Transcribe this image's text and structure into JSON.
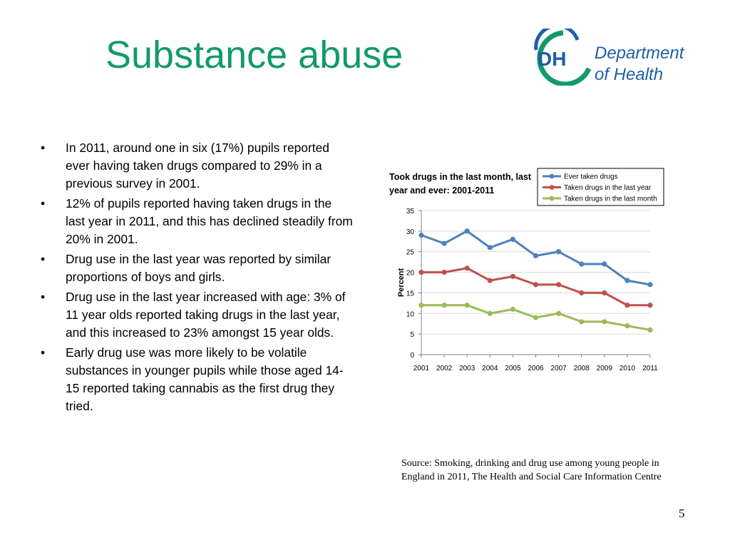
{
  "slide": {
    "title": "Substance abuse",
    "page_number": "5",
    "source": "Source: Smoking, drinking and drug use among young people in England in 2011, The Health and Social Care Information Centre",
    "bullet_glyph": "•",
    "bullets": [
      "In 2011, around one in six (17%) pupils reported ever having taken drugs compared to 29% in a previous survey in 2001.",
      "12% of pupils reported having taken drugs in the last year in 2011, and this has declined steadily from 20% in 2001.",
      "Drug use in the last year was reported by similar proportions of boys and girls.",
      "Drug use in the last year increased with age: 3% of 11 year olds reported taking drugs in the last year, and this increased to 23% amongst 15 year olds.",
      "Early drug use  was more likely to be volatile substances in younger pupils while those aged 14-15 reported taking cannabis as the first drug they tried."
    ]
  },
  "logo": {
    "mark": "DH",
    "line1": "Department",
    "line2": "of Health"
  },
  "colors": {
    "title": "#129a6a",
    "logo_blue": "#1f5ea8",
    "logo_green": "#129a6a"
  },
  "chart_data": {
    "type": "line",
    "title_lines": [
      "Took drugs in the last month, last",
      "year and ever: 2001-2011"
    ],
    "xlabel": "",
    "ylabel": "Percent",
    "ylim": [
      0,
      35
    ],
    "yticks": [
      0,
      5,
      10,
      15,
      20,
      25,
      30,
      35
    ],
    "grid": true,
    "legend_position": "top-right",
    "categories": [
      "2001",
      "2002",
      "2003",
      "2004",
      "2005",
      "2006",
      "2007",
      "2008",
      "2009",
      "2010",
      "2011"
    ],
    "series": [
      {
        "name": "Ever taken drugs",
        "color": "#4f81bd",
        "values": [
          29,
          27,
          30,
          26,
          28,
          24,
          25,
          22,
          22,
          18,
          17
        ]
      },
      {
        "name": "Taken drugs in the last year",
        "color": "#c0504d",
        "values": [
          20,
          20,
          21,
          18,
          19,
          17,
          17,
          15,
          15,
          12,
          12
        ]
      },
      {
        "name": "Taken drugs in the last month",
        "color": "#9bbb59",
        "values": [
          12,
          12,
          12,
          10,
          11,
          9,
          10,
          8,
          8,
          7,
          6
        ]
      }
    ]
  }
}
